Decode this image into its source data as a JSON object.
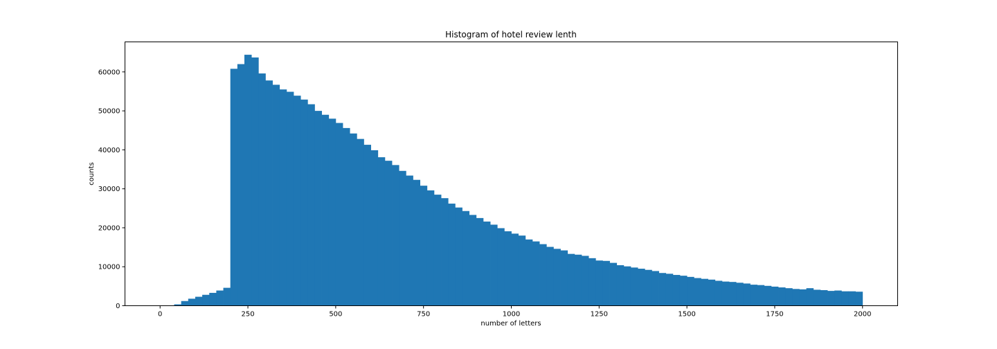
{
  "chart_data": {
    "type": "bar",
    "title": "Histogram of hotel review lenth",
    "xlabel": "number of letters",
    "ylabel": "counts",
    "xlim": [
      -100,
      2100
    ],
    "ylim": [
      0,
      67700
    ],
    "xticks": [
      0,
      250,
      500,
      750,
      1000,
      1250,
      1500,
      1750,
      2000
    ],
    "yticks": [
      0,
      10000,
      20000,
      30000,
      40000,
      50000,
      60000
    ],
    "bar_color": "#1f77b4",
    "grid": false,
    "bin_edges_start": 0,
    "bin_width": 20,
    "values": [
      0,
      50,
      350,
      1200,
      1800,
      2300,
      2800,
      3300,
      3900,
      4600,
      60800,
      62000,
      64400,
      63700,
      59600,
      57800,
      56700,
      55500,
      54900,
      53900,
      52900,
      51700,
      50000,
      49000,
      48000,
      46900,
      45600,
      44200,
      42800,
      41300,
      39900,
      38100,
      37200,
      36100,
      34600,
      33400,
      32300,
      30800,
      29600,
      28500,
      27600,
      26200,
      25200,
      24300,
      23300,
      22500,
      21600,
      20800,
      19900,
      19100,
      18500,
      18000,
      17000,
      16500,
      15800,
      15100,
      14600,
      14200,
      13300,
      13100,
      12800,
      12200,
      11600,
      11500,
      11000,
      10400,
      10100,
      9800,
      9500,
      9200,
      8900,
      8400,
      8200,
      7900,
      7700,
      7400,
      7100,
      6900,
      6700,
      6400,
      6200,
      6100,
      5900,
      5700,
      5400,
      5300,
      5100,
      4900,
      4700,
      4500,
      4300,
      4200,
      4500,
      4100,
      4000,
      3800,
      3900,
      3700,
      3700,
      3600
    ]
  }
}
